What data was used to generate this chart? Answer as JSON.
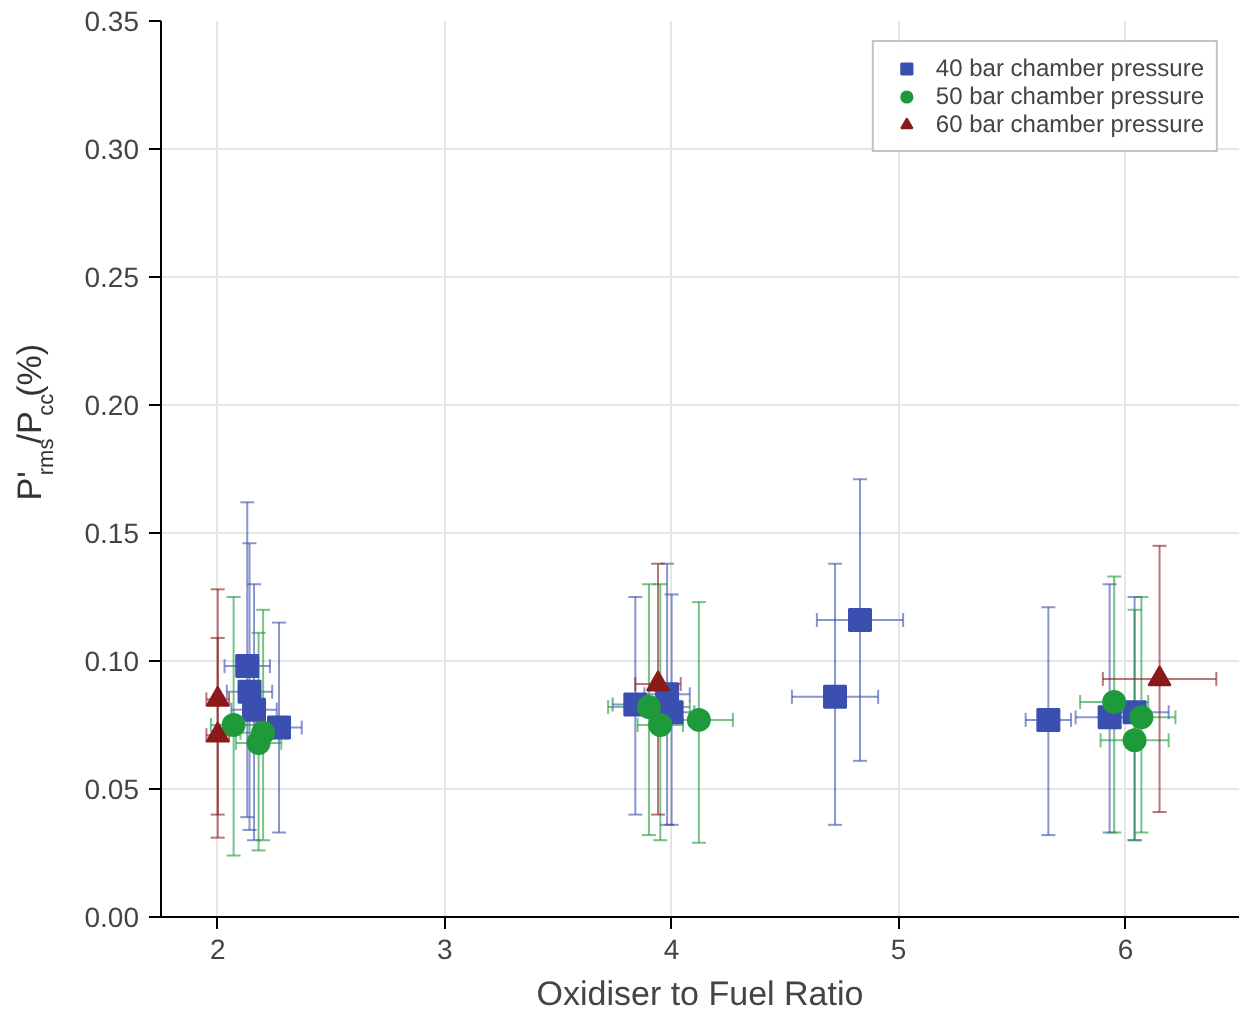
{
  "chart_data": {
    "type": "scatter",
    "xlabel": "Oxidiser to Fuel Ratio",
    "ylabel": "P'$_{rms}$/P$_{cc}$(%)",
    "xlim": [
      1.75,
      6.5
    ],
    "xticks": [
      2,
      3,
      4,
      5,
      6
    ],
    "ylim": [
      0,
      0.35
    ],
    "yticks": [
      {
        "value": 0,
        "label": "0.00"
      },
      {
        "value": 0.05,
        "label": "0.05"
      },
      {
        "value": 0.1,
        "label": "0.10"
      },
      {
        "value": 0.15,
        "label": "0.15"
      },
      {
        "value": 0.2,
        "label": "0.20"
      },
      {
        "value": 0.25,
        "label": "0.25"
      },
      {
        "value": 0.3,
        "label": "0.30"
      },
      {
        "value": 0.35,
        "label": "0.35"
      }
    ],
    "grid": true,
    "legend": "top right",
    "series": [
      {
        "name": "40 bar chamber pressure",
        "color": "#3a4fb0",
        "marker": "square",
        "x": [
          2.13,
          2.14,
          2.16,
          2.27,
          3.84,
          3.98,
          4.0,
          4.72,
          4.83,
          5.66,
          5.93,
          6.04
        ],
        "values": [
          0.098,
          0.088,
          0.081,
          0.074,
          0.083,
          0.087,
          0.08,
          0.086,
          0.116,
          0.077,
          0.078,
          0.08
        ],
        "errors": [
          [
            0.039,
            0.162
          ],
          [
            0.034,
            0.146
          ],
          [
            0.03,
            0.13
          ],
          [
            0.033,
            0.115
          ],
          [
            0.04,
            0.125
          ],
          [
            0.036,
            0.138
          ],
          [
            0.036,
            0.126
          ],
          [
            0.036,
            0.138
          ],
          [
            0.061,
            0.171
          ],
          [
            0.032,
            0.121
          ],
          [
            0.033,
            0.13
          ],
          [
            0.03,
            0.125
          ]
        ],
        "xerrors": [
          0.1,
          0.1,
          0.1,
          0.1,
          0.1,
          0.1,
          0.1,
          0.19,
          0.19,
          0.1,
          0.15,
          0.15
        ]
      },
      {
        "name": "50 bar chamber pressure",
        "color": "#1e9a3a",
        "marker": "circle",
        "x": [
          2.07,
          2.18,
          2.2,
          3.9,
          3.95,
          4.12,
          5.95,
          6.04,
          6.07
        ],
        "values": [
          0.075,
          0.068,
          0.072,
          0.082,
          0.075,
          0.077,
          0.084,
          0.069,
          0.078
        ],
        "errors": [
          [
            0.024,
            0.125
          ],
          [
            0.026,
            0.111
          ],
          [
            0.03,
            0.12
          ],
          [
            0.032,
            0.13
          ],
          [
            0.03,
            0.13
          ],
          [
            0.029,
            0.123
          ],
          [
            0.033,
            0.133
          ],
          [
            0.03,
            0.12
          ],
          [
            0.033,
            0.125
          ]
        ],
        "xerrors": [
          0.1,
          0.1,
          0.1,
          0.18,
          0.1,
          0.15,
          0.15,
          0.15,
          0.15
        ]
      },
      {
        "name": "60 bar chamber pressure",
        "color": "#8b1a1a",
        "marker": "triangle",
        "x": [
          2.0,
          2.0,
          3.94,
          6.15
        ],
        "values": [
          0.085,
          0.071,
          0.091,
          0.093
        ],
        "errors": [
          [
            0.031,
            0.128
          ],
          [
            0.04,
            0.109
          ],
          [
            0.04,
            0.138
          ],
          [
            0.041,
            0.145
          ]
        ],
        "xerrors": [
          0.05,
          0.05,
          0.1,
          0.25
        ]
      }
    ]
  }
}
